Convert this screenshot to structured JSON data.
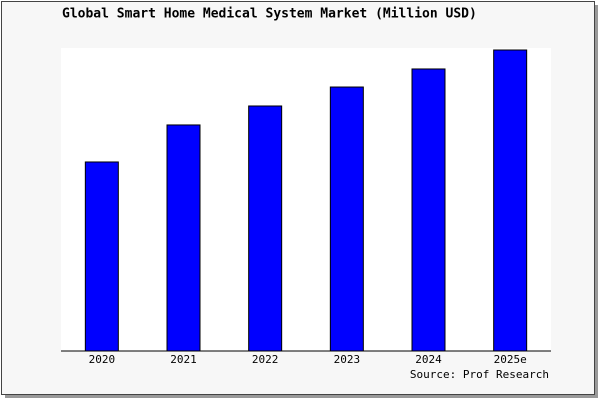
{
  "chart_data": {
    "type": "bar",
    "title": "Global Smart Home Medical System Market (Million USD)",
    "categories": [
      "2020",
      "2021",
      "2022",
      "2023",
      "2024",
      "2025e"
    ],
    "values": [
      62.8,
      75.1,
      81.4,
      87.7,
      93.7,
      100
    ],
    "color": "#0000ff",
    "ylim": [
      0,
      100
    ],
    "source": "Source: Prof Research"
  }
}
